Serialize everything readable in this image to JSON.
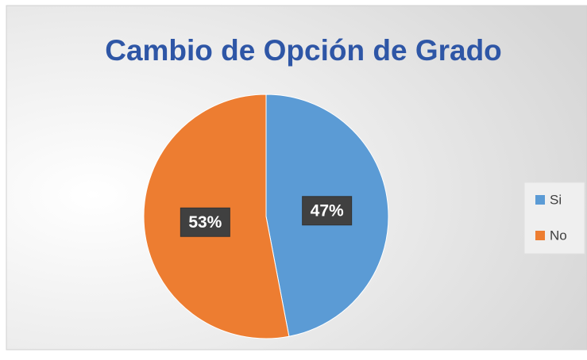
{
  "chart_data": {
    "type": "pie",
    "title": "Cambio de Opción de Grado",
    "categories": [
      "Si",
      "No"
    ],
    "values": [
      47,
      53
    ],
    "value_labels": [
      "47%",
      "53%"
    ],
    "colors": [
      "#5b9bd5",
      "#ed7d31"
    ],
    "legend": "right"
  }
}
